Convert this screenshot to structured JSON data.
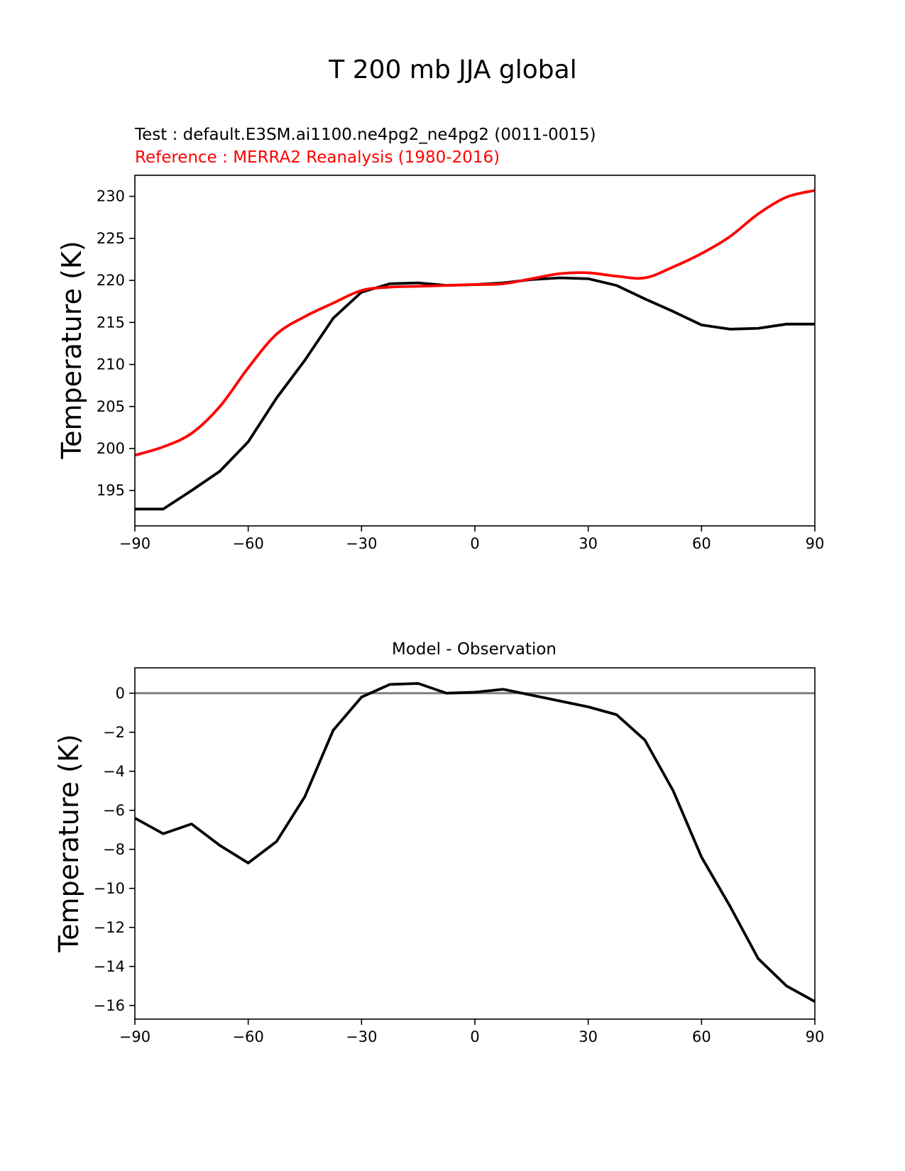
{
  "figure_title": "T 200 mb JJA global",
  "chart_data": [
    {
      "type": "line",
      "title_test": "Test : default.E3SM.ai1100.ne4pg2_ne4pg2 (0011-0015)",
      "title_reference": "Reference : MERRA2 Reanalysis (1980-2016)",
      "xlabel": "",
      "ylabel": "Temperature (K)",
      "xlim": [
        -90,
        90
      ],
      "ylim": [
        190.8,
        232.5
      ],
      "xticks": [
        -90,
        -60,
        -30,
        0,
        30,
        60,
        90
      ],
      "xtick_labels": [
        "−90",
        "−60",
        "−30",
        "0",
        "30",
        "60",
        "90"
      ],
      "yticks": [
        195,
        200,
        205,
        210,
        215,
        220,
        225,
        230
      ],
      "ytick_labels": [
        "195",
        "200",
        "205",
        "210",
        "215",
        "220",
        "225",
        "230"
      ],
      "series": [
        {
          "name": "Test",
          "color": "#000000",
          "smooth": false,
          "x": [
            -90,
            -82.5,
            -75,
            -67.5,
            -60,
            -52.5,
            -45,
            -37.5,
            -30,
            -22.5,
            -15,
            -7.5,
            0,
            7.5,
            15,
            22.5,
            30,
            37.5,
            45,
            52.5,
            60,
            67.5,
            75,
            82.5,
            90
          ],
          "values": [
            192.8,
            192.8,
            195.0,
            197.3,
            200.8,
            206.0,
            210.5,
            215.5,
            218.6,
            219.6,
            219.7,
            219.4,
            219.5,
            219.7,
            220.1,
            220.3,
            220.2,
            219.4,
            217.8,
            216.3,
            214.7,
            214.2,
            214.3,
            214.8,
            214.8
          ]
        },
        {
          "name": "Reference",
          "color": "#ff0000",
          "smooth": true,
          "x": [
            -90,
            -82.5,
            -75,
            -67.5,
            -60,
            -52.5,
            -45,
            -37.5,
            -30,
            -22.5,
            -15,
            -7.5,
            0,
            7.5,
            15,
            22.5,
            30,
            37.5,
            45,
            52.5,
            60,
            67.5,
            75,
            82.5,
            90
          ],
          "values": [
            199.2,
            200.2,
            201.8,
            205.0,
            209.6,
            213.6,
            215.7,
            217.3,
            218.8,
            219.2,
            219.3,
            219.4,
            219.5,
            219.6,
            220.2,
            220.8,
            220.9,
            220.5,
            220.3,
            221.6,
            223.2,
            225.2,
            227.9,
            229.9,
            230.7
          ]
        }
      ]
    },
    {
      "type": "line",
      "title": "Model - Observation",
      "xlabel": "",
      "ylabel": "Temperature (K)",
      "xlim": [
        -90,
        90
      ],
      "ylim": [
        -16.7,
        1.3
      ],
      "xticks": [
        -90,
        -60,
        -30,
        0,
        30,
        60,
        90
      ],
      "xtick_labels": [
        "−90",
        "−60",
        "−30",
        "0",
        "30",
        "60",
        "90"
      ],
      "yticks": [
        0,
        -2,
        -4,
        -6,
        -8,
        -10,
        -12,
        -14,
        -16
      ],
      "ytick_labels": [
        "0",
        "−2",
        "−4",
        "−6",
        "−8",
        "−10",
        "−12",
        "−14",
        "−16"
      ],
      "reference_line": {
        "y": 0,
        "color": "#808080"
      },
      "series": [
        {
          "name": "Model - Observation",
          "color": "#000000",
          "smooth": false,
          "x": [
            -90,
            -82.5,
            -75,
            -67.5,
            -60,
            -52.5,
            -45,
            -37.5,
            -30,
            -22.5,
            -15,
            -7.5,
            0,
            7.5,
            15,
            22.5,
            30,
            37.5,
            45,
            52.5,
            60,
            67.5,
            75,
            82.5,
            90
          ],
          "values": [
            -6.4,
            -7.2,
            -6.7,
            -7.8,
            -8.7,
            -7.6,
            -5.3,
            -1.9,
            -0.2,
            0.45,
            0.5,
            0.0,
            0.05,
            0.2,
            -0.1,
            -0.4,
            -0.7,
            -1.1,
            -2.4,
            -5.0,
            -8.4,
            -10.9,
            -13.6,
            -15.0,
            -15.8
          ]
        }
      ]
    }
  ]
}
